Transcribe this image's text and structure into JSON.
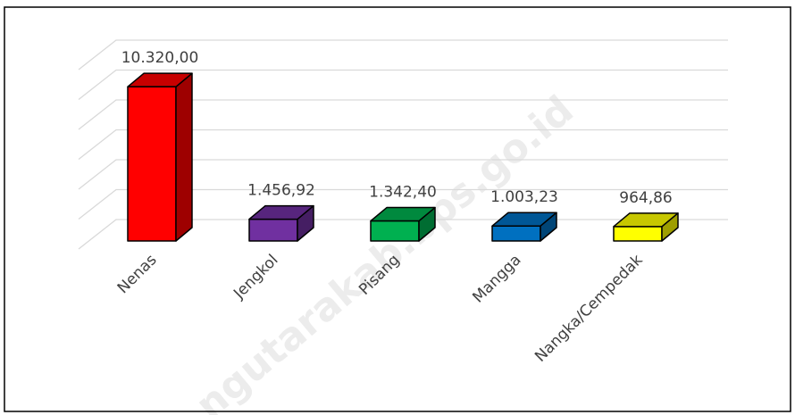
{
  "chart_data": {
    "type": "bar3d",
    "categories": [
      "Nenas",
      "Jengkol",
      "Pisang",
      "Mangga",
      "Nangka/Cempedak"
    ],
    "values": [
      10320.0,
      1456.92,
      1342.4,
      1003.23,
      964.86
    ],
    "value_labels": [
      "10.320,00",
      "1.456,92",
      "1.342,40",
      "1.003,23",
      "964,86"
    ],
    "colors": [
      "#ff0000",
      "#7030a0",
      "#00b050",
      "#0070c0",
      "#ffff00"
    ],
    "ylim": [
      0,
      12000
    ],
    "yticks": [
      0,
      2000,
      4000,
      6000,
      8000,
      10000,
      12000
    ],
    "grid": true,
    "watermark": "ngutarakab.bps.go.id"
  }
}
